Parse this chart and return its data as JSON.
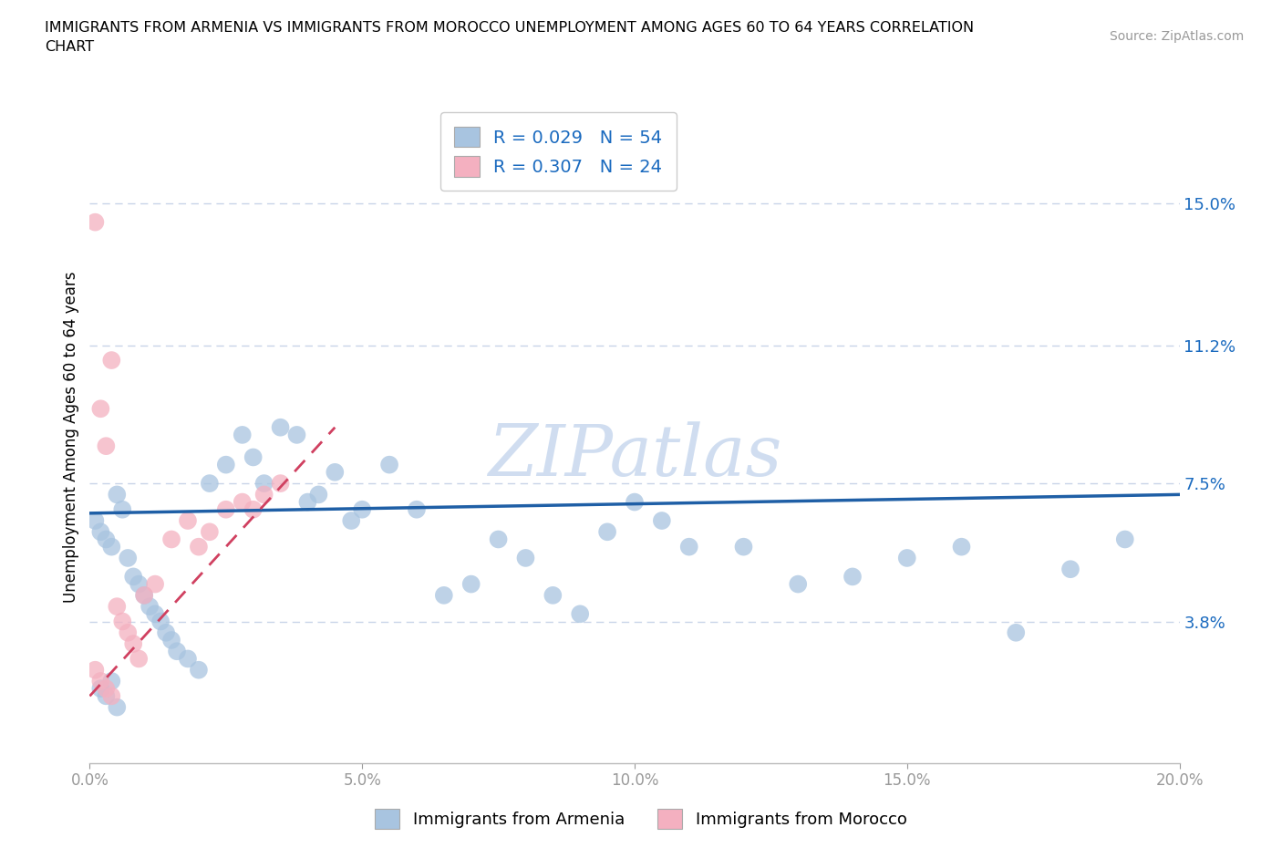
{
  "title": "IMMIGRANTS FROM ARMENIA VS IMMIGRANTS FROM MOROCCO UNEMPLOYMENT AMONG AGES 60 TO 64 YEARS CORRELATION\nCHART",
  "source": "Source: ZipAtlas.com",
  "ylabel": "Unemployment Among Ages 60 to 64 years",
  "xlim": [
    0.0,
    0.2
  ],
  "ylim": [
    0.0,
    0.175
  ],
  "xticks": [
    0.0,
    0.05,
    0.1,
    0.15,
    0.2
  ],
  "xticklabels": [
    "0.0%",
    "5.0%",
    "10.0%",
    "15.0%",
    "20.0%"
  ],
  "ytick_positions": [
    0.038,
    0.075,
    0.112,
    0.15
  ],
  "ytick_labels": [
    "3.8%",
    "7.5%",
    "11.2%",
    "15.0%"
  ],
  "armenia_color": "#a8c4e0",
  "morocco_color": "#f4b0c0",
  "armenia_trend_color": "#1f5fa6",
  "morocco_trend_color": "#d04060",
  "grid_color": "#c8d4e8",
  "background_color": "#ffffff",
  "watermark": "ZIPatlas",
  "watermark_color": "#c8d8ee",
  "legend_R_color": "#1a6abf",
  "armenia_R": 0.029,
  "armenia_N": 54,
  "morocco_R": 0.307,
  "morocco_N": 24,
  "armenia_x": [
    0.001,
    0.002,
    0.003,
    0.004,
    0.005,
    0.006,
    0.007,
    0.008,
    0.009,
    0.01,
    0.011,
    0.012,
    0.013,
    0.014,
    0.015,
    0.016,
    0.018,
    0.02,
    0.022,
    0.025,
    0.028,
    0.03,
    0.032,
    0.035,
    0.038,
    0.04,
    0.042,
    0.045,
    0.048,
    0.05,
    0.055,
    0.06,
    0.065,
    0.07,
    0.075,
    0.08,
    0.085,
    0.09,
    0.095,
    0.1,
    0.105,
    0.11,
    0.12,
    0.13,
    0.14,
    0.15,
    0.16,
    0.17,
    0.18,
    0.19,
    0.002,
    0.003,
    0.004,
    0.005
  ],
  "armenia_y": [
    0.065,
    0.062,
    0.06,
    0.058,
    0.072,
    0.068,
    0.055,
    0.05,
    0.048,
    0.045,
    0.042,
    0.04,
    0.038,
    0.035,
    0.033,
    0.03,
    0.028,
    0.025,
    0.075,
    0.08,
    0.088,
    0.082,
    0.075,
    0.09,
    0.088,
    0.07,
    0.072,
    0.078,
    0.065,
    0.068,
    0.08,
    0.068,
    0.045,
    0.048,
    0.06,
    0.055,
    0.045,
    0.04,
    0.062,
    0.07,
    0.065,
    0.058,
    0.058,
    0.048,
    0.05,
    0.055,
    0.058,
    0.035,
    0.052,
    0.06,
    0.02,
    0.018,
    0.022,
    0.015
  ],
  "morocco_x": [
    0.001,
    0.002,
    0.003,
    0.004,
    0.005,
    0.006,
    0.007,
    0.008,
    0.009,
    0.01,
    0.012,
    0.015,
    0.018,
    0.02,
    0.022,
    0.025,
    0.028,
    0.03,
    0.032,
    0.035,
    0.002,
    0.003,
    0.004,
    0.001
  ],
  "morocco_y": [
    0.025,
    0.022,
    0.02,
    0.018,
    0.042,
    0.038,
    0.035,
    0.032,
    0.028,
    0.045,
    0.048,
    0.06,
    0.065,
    0.058,
    0.062,
    0.068,
    0.07,
    0.068,
    0.072,
    0.075,
    0.095,
    0.085,
    0.108,
    0.145
  ]
}
